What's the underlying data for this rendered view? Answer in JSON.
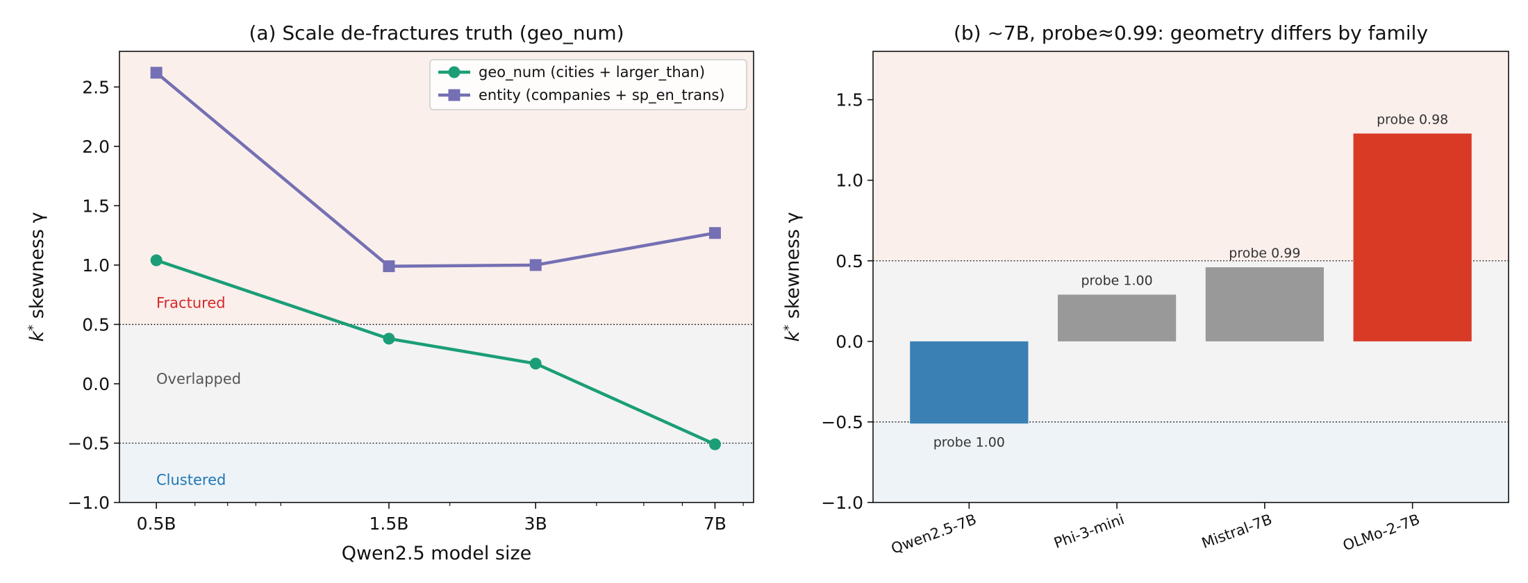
{
  "chart_data": [
    {
      "type": "line",
      "title": "(a) Scale de-fractures truth (geo_num)",
      "xlabel": "Qwen2.5 model size",
      "ylabel_prefix": "k",
      "ylabel_sup": "*",
      "ylabel_suffix": " skewness γ",
      "x_scale": "log",
      "x": [
        0.5,
        1.5,
        3,
        7
      ],
      "x_tick_labels": [
        "0.5B",
        "1.5B",
        "3B",
        "7B"
      ],
      "ylim": [
        -1.0,
        2.8
      ],
      "y_ticks": [
        -1.0,
        -0.5,
        0.0,
        0.5,
        1.0,
        1.5,
        2.0,
        2.5
      ],
      "y_tick_labels": [
        "−1.0",
        "−0.5",
        "0.0",
        "0.5",
        "1.0",
        "1.5",
        "2.0",
        "2.5"
      ],
      "thresholds": [
        0.5,
        -0.5
      ],
      "regions": [
        {
          "label": "Fractured",
          "from": 0.5,
          "to": 2.8,
          "fill": "#fbefec",
          "text_color": "#d62728",
          "label_y": 0.68
        },
        {
          "label": "Overlapped",
          "from": -0.5,
          "to": 0.5,
          "fill": "#f3f3f3",
          "text_color": "#555555",
          "label_y": 0.04
        },
        {
          "label": "Clustered",
          "from": -1.0,
          "to": -0.5,
          "fill": "#eef3f7",
          "text_color": "#1f77b4",
          "label_y": -0.81
        }
      ],
      "series": [
        {
          "name": "geo_num (cities + larger_than)",
          "values": [
            1.04,
            0.38,
            0.17,
            -0.51
          ],
          "color": "#1b9e77",
          "marker": "circle"
        },
        {
          "name": "entity (companies + sp_en_trans)",
          "values": [
            2.62,
            0.99,
            1.0,
            1.27
          ],
          "color": "#7570b3",
          "marker": "square"
        }
      ],
      "legend_position": "upper-right"
    },
    {
      "type": "bar",
      "title": "(b) ~7B, probe≈0.99: geometry differs by family",
      "xlabel": "",
      "ylabel_prefix": "k",
      "ylabel_sup": "*",
      "ylabel_suffix": " skewness γ",
      "categories": [
        "Qwen2.5-7B",
        "Phi-3-mini",
        "Mistral-7B",
        "OLMo-2-7B"
      ],
      "values": [
        -0.51,
        0.29,
        0.46,
        1.29
      ],
      "bar_labels": [
        "probe 1.00",
        "probe 1.00",
        "probe 0.99",
        "probe 0.98"
      ],
      "bar_colors": [
        "#3a80b4",
        "#999999",
        "#999999",
        "#d93a26"
      ],
      "ylim": [
        -1.0,
        1.8
      ],
      "y_ticks": [
        -1.0,
        -0.5,
        0.0,
        0.5,
        1.0,
        1.5
      ],
      "y_tick_labels": [
        "−1.0",
        "−0.5",
        "0.0",
        "0.5",
        "1.0",
        "1.5"
      ],
      "thresholds": [
        0.5,
        -0.5
      ],
      "regions": [
        {
          "from": 0.5,
          "to": 1.8,
          "fill": "#fbefec"
        },
        {
          "from": -0.5,
          "to": 0.5,
          "fill": "#f3f3f3"
        },
        {
          "from": -1.0,
          "to": -0.5,
          "fill": "#eef3f7"
        }
      ]
    }
  ]
}
